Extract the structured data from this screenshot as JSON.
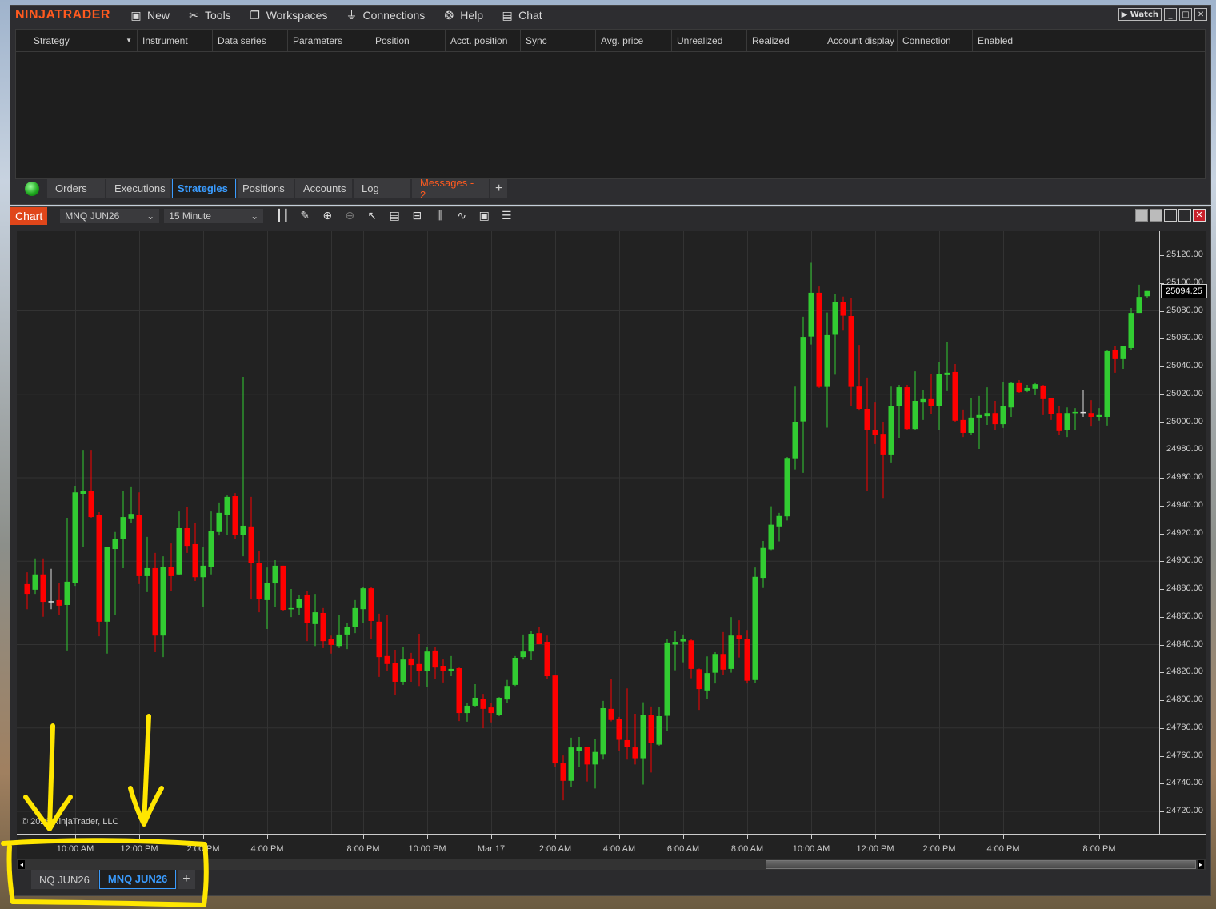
{
  "control_center": {
    "logo": "NINJATRADER",
    "menu": [
      {
        "label": "New",
        "icon": "new-window-icon"
      },
      {
        "label": "Tools",
        "icon": "tools-icon"
      },
      {
        "label": "Workspaces",
        "icon": "workspaces-icon"
      },
      {
        "label": "Connections",
        "icon": "plug-icon"
      },
      {
        "label": "Help",
        "icon": "lifebuoy-icon"
      },
      {
        "label": "Chat",
        "icon": "chat-icon"
      }
    ],
    "watch_label": "Watch",
    "columns": [
      "Strategy",
      "Instrument",
      "Data series",
      "Parameters",
      "Position",
      "Acct. position",
      "Sync",
      "Avg. price",
      "Unrealized",
      "Realized",
      "Account display",
      "Connection",
      "Enabled"
    ],
    "tabs": [
      "Orders",
      "Executions",
      "Strategies",
      "Positions",
      "Accounts",
      "Log",
      "Messages - 2"
    ],
    "active_tab": "Strategies",
    "add_tab": "+",
    "connection_status_color": "#22aa22"
  },
  "chart": {
    "label": "Chart",
    "instrument": "MNQ JUN26",
    "interval": "15 Minute",
    "toolbar_icons": [
      "bar-type-icon",
      "drawing-tool-icon",
      "zoom-in-icon",
      "zoom-out-icon",
      "pointer-icon",
      "data-box-icon",
      "properties-icon",
      "indicators-icon",
      "strategies-icon",
      "templates-icon",
      "order-list-icon"
    ],
    "copyright": "© 2026 NinjaTrader, LLC",
    "current_price": "25094.25",
    "tabs": [
      "NQ JUN26",
      "MNQ JUN26"
    ],
    "active_tab": "MNQ JUN26",
    "add_tab": "+"
  },
  "chart_data": {
    "type": "candlestick",
    "up_color": "#32cd32",
    "down_color": "#ff0000",
    "doji_color": "#dddddd",
    "ylim": [
      24705,
      25135
    ],
    "yticks": [
      "25120.00",
      "25100.00",
      "25080.00",
      "25060.00",
      "25040.00",
      "25020.00",
      "25000.00",
      "24980.00",
      "24960.00",
      "24940.00",
      "24920.00",
      "24900.00",
      "24880.00",
      "24860.00",
      "24840.00",
      "24820.00",
      "24800.00",
      "24780.00",
      "24760.00",
      "24740.00",
      "24720.00"
    ],
    "xticks": [
      {
        "bar": 6,
        "label": "10:00 AM"
      },
      {
        "bar": 14,
        "label": "12:00 PM"
      },
      {
        "bar": 22,
        "label": "2:00 PM"
      },
      {
        "bar": 30,
        "label": "4:00 PM"
      },
      {
        "bar": 42,
        "label": "8:00 PM"
      },
      {
        "bar": 50,
        "label": "10:00 PM"
      },
      {
        "bar": 58,
        "label": "Mar 17"
      },
      {
        "bar": 66,
        "label": "2:00 AM"
      },
      {
        "bar": 74,
        "label": "4:00 AM"
      },
      {
        "bar": 82,
        "label": "6:00 AM"
      },
      {
        "bar": 90,
        "label": "8:00 AM"
      },
      {
        "bar": 98,
        "label": "10:00 AM"
      },
      {
        "bar": 106,
        "label": "12:00 PM"
      },
      {
        "bar": 114,
        "label": "2:00 PM"
      },
      {
        "bar": 122,
        "label": "4:00 PM"
      },
      {
        "bar": 134,
        "label": "8:00 PM"
      }
    ],
    "ohlc": [
      [
        24883.5,
        24892,
        24865.5,
        24876.5
      ],
      [
        24879.5,
        24902,
        24876.5,
        24890.5
      ],
      [
        24890.5,
        24902,
        24860,
        24870.75
      ],
      [
        24871.25,
        24894.5,
        24865.5,
        24871.25
      ],
      [
        24872,
        24884,
        24861.5,
        24868
      ],
      [
        24868.5,
        24931.25,
        24835.75,
        24885.25
      ],
      [
        24884.5,
        24954.25,
        24882.25,
        24949.5
      ],
      [
        24948.5,
        24979.5,
        24910.5,
        24950.25
      ],
      [
        24950.25,
        24979.5,
        24931.25,
        24931.75
      ],
      [
        24933,
        24935.25,
        24846,
        24856.5
      ],
      [
        24856.5,
        24910,
        24833.5,
        24910
      ],
      [
        24908.75,
        24921,
        24861,
        24916.25
      ],
      [
        24916.25,
        24950.75,
        24895,
        24931.75
      ],
      [
        24930.75,
        24953.75,
        24927.25,
        24934
      ],
      [
        24933.5,
        24949.5,
        24883.5,
        24889.25
      ],
      [
        24889.25,
        24917.5,
        24877.75,
        24895
      ],
      [
        24895,
        24906,
        24834.5,
        24846.5
      ],
      [
        24846.5,
        24903.5,
        24831,
        24896
      ],
      [
        24896,
        24912.75,
        24878.75,
        24889.25
      ],
      [
        24890.5,
        24935.75,
        24889.75,
        24923.75
      ],
      [
        24923.75,
        24939.25,
        24906,
        24911
      ],
      [
        24912.25,
        24927.25,
        24885.75,
        24888.5
      ],
      [
        24888.5,
        24910.5,
        24866.75,
        24896.75
      ],
      [
        24896,
        24935.75,
        24890.5,
        24921.5
      ],
      [
        24921,
        24942.25,
        24918.5,
        24934.75
      ],
      [
        24933.5,
        24947.25,
        24919,
        24946.25
      ],
      [
        24946.75,
        24949,
        24916.25,
        24919
      ],
      [
        24919,
        25032.5,
        24903.5,
        24925.5
      ],
      [
        24925,
        24946.25,
        24873,
        24898.5
      ],
      [
        24899,
        24907.5,
        24863.25,
        24872.5
      ],
      [
        24872,
        24895.5,
        24851.25,
        24884.5
      ],
      [
        24884,
        24900.75,
        24866.75,
        24896.75
      ],
      [
        24896.75,
        24896.75,
        24864,
        24865
      ],
      [
        24865.5,
        24880,
        24859.75,
        24866.25
      ],
      [
        24866.25,
        24876,
        24861,
        24873
      ],
      [
        24876,
        24878.75,
        24842.5,
        24855.75
      ],
      [
        24854.75,
        24876.5,
        24839,
        24863.25
      ],
      [
        24862.75,
        24866.25,
        24837.5,
        24842.5
      ],
      [
        24843.75,
        24846.5,
        24833.5,
        24839.75
      ],
      [
        24839,
        24861,
        24837.5,
        24847.25
      ],
      [
        24847.25,
        24855.25,
        24836.75,
        24852.5
      ],
      [
        24852.5,
        24872,
        24848.25,
        24866.25
      ],
      [
        24865.5,
        24881.75,
        24855.25,
        24880.5
      ],
      [
        24880.5,
        24881.25,
        24843.75,
        24857
      ],
      [
        24856.5,
        24862.25,
        24816.75,
        24831
      ],
      [
        24831.75,
        24861.5,
        24821.25,
        24826
      ],
      [
        24827,
        24836.25,
        24804,
        24813.25
      ],
      [
        24813.25,
        24838.5,
        24811,
        24829.25
      ],
      [
        24830,
        24834,
        24813.25,
        24825.25
      ],
      [
        24826,
        24847.75,
        24810.25,
        24821.25
      ],
      [
        24820.75,
        24838.5,
        24809.25,
        24835
      ],
      [
        24835.75,
        24838.5,
        24815.5,
        24823.5
      ],
      [
        24824.75,
        24829.25,
        24812.75,
        24820.75
      ],
      [
        24821.25,
        24831.75,
        24817.25,
        24822.5
      ],
      [
        24823,
        24823.5,
        24785,
        24790.75
      ],
      [
        24790.75,
        24798.25,
        24784.5,
        24796
      ],
      [
        24796,
        24811.5,
        24795.5,
        24801.75
      ],
      [
        24801,
        24804.5,
        24779.75,
        24793.75
      ],
      [
        24794.75,
        24798.25,
        24784,
        24790.75
      ],
      [
        24789.5,
        24802.25,
        24788.5,
        24801.75
      ],
      [
        24800.5,
        24814.5,
        24798.25,
        24810.25
      ],
      [
        24811,
        24831.75,
        24810.25,
        24830.5
      ],
      [
        24831,
        24847.25,
        24829.25,
        24835
      ],
      [
        24835,
        24850,
        24828.75,
        24847.75
      ],
      [
        24848.25,
        24852.5,
        24840.25,
        24840.25
      ],
      [
        24842,
        24846.5,
        24815,
        24817.25
      ],
      [
        24817.75,
        24817.75,
        24752.25,
        24754.5
      ],
      [
        24754.5,
        24760.25,
        24728,
        24742
      ],
      [
        24742,
        24773,
        24737.75,
        24766
      ],
      [
        24763.75,
        24773.5,
        24752.25,
        24766
      ],
      [
        24766.25,
        24766.25,
        24741.5,
        24753.75
      ],
      [
        24753.75,
        24772.25,
        24736.5,
        24762.75
      ],
      [
        24761.25,
        24799.5,
        24757.25,
        24794.25
      ],
      [
        24793.75,
        24815.5,
        24784.75,
        24785.75
      ],
      [
        24786.25,
        24788,
        24763.5,
        24771.5
      ],
      [
        24771.25,
        24808.5,
        24757.25,
        24766.25
      ],
      [
        24766,
        24790.25,
        24753.75,
        24758.25
      ],
      [
        24758.25,
        24798.5,
        24739.25,
        24789.25
      ],
      [
        24789.25,
        24795.5,
        24748,
        24769.25
      ],
      [
        24768,
        24795,
        24767.25,
        24788.5
      ],
      [
        24788.75,
        24844.25,
        24778,
        24841.5
      ],
      [
        24840,
        24850,
        24821.5,
        24842
      ],
      [
        24842.25,
        24847.25,
        24827.25,
        24843.75
      ],
      [
        24843,
        24843.75,
        24815.75,
        24822.5
      ],
      [
        24822.25,
        24822.75,
        24793,
        24808
      ],
      [
        24807,
        24831.5,
        24801,
        24819.5
      ],
      [
        24819.75,
        24834.5,
        24812,
        24833.25
      ],
      [
        24833.25,
        24849,
        24818,
        24822
      ],
      [
        24822.5,
        24859.75,
        24819.75,
        24846.5
      ],
      [
        24846.5,
        24857.5,
        24830.75,
        24844
      ],
      [
        24843.75,
        24850.5,
        24812,
        24814
      ],
      [
        24814.5,
        24895.5,
        24812.5,
        24888.75
      ],
      [
        24888,
        24914.5,
        24880.75,
        24909.5
      ],
      [
        24908.5,
        24939.5,
        24908,
        24926.25
      ],
      [
        24925,
        24934.75,
        24914.25,
        24932.5
      ],
      [
        24932.25,
        24975,
        24929.25,
        24974.25
      ],
      [
        24974,
        25025.5,
        24966,
        25000.25
      ],
      [
        25000.5,
        25075.75,
        24963.5,
        25061.25
      ],
      [
        25061.5,
        25114.5,
        25055.75,
        25093
      ],
      [
        25093,
        25097.5,
        25024.5,
        25025.25
      ],
      [
        25025.25,
        25078.75,
        24996,
        25062.5
      ],
      [
        25062.75,
        25092,
        25034,
        25086.25
      ],
      [
        25086.25,
        25090.25,
        25065.75,
        25076.5
      ],
      [
        25076.25,
        25089,
        25011.5,
        25025.25
      ],
      [
        25025.5,
        25055.5,
        25008.25,
        25009.5
      ],
      [
        25009.5,
        25032,
        24950.75,
        24994
      ],
      [
        24994.5,
        25014,
        24984.25,
        24990.5
      ],
      [
        24991,
        25000.25,
        24945.5,
        24976.75
      ],
      [
        24976.75,
        25025.5,
        24971,
        25011.75
      ],
      [
        25011.25,
        25026.75,
        24988.25,
        25025
      ],
      [
        25025,
        25026.75,
        24994.5,
        24995
      ],
      [
        24995,
        25036.5,
        24994,
        25015.25
      ],
      [
        25014,
        25022.75,
        25001.5,
        25016.5
      ],
      [
        25016.5,
        25034.75,
        25005.5,
        25011.25
      ],
      [
        25011.25,
        25043,
        24994,
        25034.25
      ],
      [
        25033.75,
        25057.75,
        25022.25,
        25035.5
      ],
      [
        25036,
        25041.75,
        24999.75,
        25001
      ],
      [
        25001.5,
        25009,
        24989.25,
        24992.25
      ],
      [
        24992.25,
        25017,
        24990.5,
        25003.25
      ],
      [
        25003.25,
        25018.75,
        24980.75,
        25005
      ],
      [
        25004.25,
        25025,
        24998,
        25006.5
      ],
      [
        25006.5,
        25015.25,
        24994,
        24998.5
      ],
      [
        24998.5,
        25028.5,
        24995.75,
        25011.25
      ],
      [
        25010.5,
        25029,
        25003.75,
        25028
      ],
      [
        25028,
        25030.25,
        25021,
        25021.5
      ],
      [
        25022.25,
        25026.75,
        25021.5,
        25024.5
      ],
      [
        25024,
        25028,
        25019.25,
        25027.25
      ],
      [
        25026.25,
        25026.75,
        25005,
        25016.5
      ],
      [
        25017,
        25017,
        25001.5,
        25006
      ],
      [
        25006.5,
        25011.25,
        24990.5,
        24993.5
      ],
      [
        24994,
        25010.5,
        24989.25,
        25006.5
      ],
      [
        25006.5,
        25010,
        24994.5,
        25007.25
      ],
      [
        25007.25,
        25023.25,
        25003.75,
        25007.25
      ],
      [
        25006.5,
        25015.75,
        24996.75,
        25003.75
      ],
      [
        25003.75,
        25010,
        25001,
        25005
      ],
      [
        25003.75,
        25052,
        24997.5,
        25051
      ],
      [
        25052,
        25055,
        25035.5,
        25045.25
      ],
      [
        25045.25,
        25055,
        25038.25,
        25054.5
      ],
      [
        25053.25,
        25082,
        25052,
        25078.5
      ],
      [
        25078.5,
        25098.75,
        25078.5,
        25090
      ],
      [
        25090.5,
        25094.25,
        25089,
        25094.25
      ]
    ]
  },
  "annotation_color": "#ffe600"
}
